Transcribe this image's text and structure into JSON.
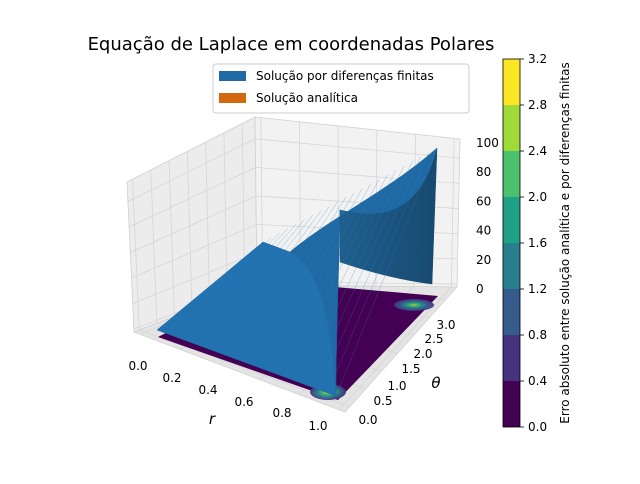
{
  "chart_data": {
    "type": "surface3d",
    "title": "Equação de Laplace em coordenadas Polares",
    "xlabel": "r",
    "ylabel": "θ",
    "zlabel": "",
    "xlim": [
      0.0,
      1.0
    ],
    "ylim": [
      0.0,
      3.1416
    ],
    "zlim": [
      0,
      100
    ],
    "x_ticks": [
      "0.0",
      "0.2",
      "0.4",
      "0.6",
      "0.8",
      "1.0"
    ],
    "y_ticks": [
      "0.0",
      "0.5",
      "1.0",
      "1.5",
      "2.0",
      "2.5",
      "3.0"
    ],
    "z_ticks": [
      "0",
      "20",
      "40",
      "60",
      "80",
      "100"
    ],
    "legend": {
      "placement": "top-center",
      "entries": [
        {
          "label": "Solução por diferenças finitas",
          "color": "#1f6aa5"
        },
        {
          "label": "Solução analítica",
          "color": "#d2690e"
        }
      ]
    },
    "surface_samples": {
      "r": [
        0.0,
        0.5,
        1.0
      ],
      "theta": [
        0.0,
        1.5708,
        3.1416
      ],
      "u": [
        [
          0,
          0,
          0
        ],
        [
          0,
          25,
          50
        ],
        [
          0,
          50,
          100
        ]
      ]
    },
    "error_contour": {
      "levels": [
        0.0,
        0.4,
        0.8,
        1.2,
        1.6,
        2.0,
        2.4,
        2.8,
        3.2
      ],
      "colors": [
        "#440154",
        "#46327e",
        "#365c8d",
        "#277f8e",
        "#1fa187",
        "#4ac16d",
        "#a0da39",
        "#fde725"
      ],
      "hotspots": [
        {
          "r": 1.0,
          "theta": 0.0,
          "max_error": 3.0
        },
        {
          "r": 1.0,
          "theta": 3.1416,
          "max_error": 2.4
        }
      ]
    },
    "colorbar": {
      "label": "Erro absoluto entre solução analítica e por diferenças finitas",
      "ticks": [
        "0.0",
        "0.4",
        "0.8",
        "1.2",
        "1.6",
        "2.0",
        "2.4",
        "2.8",
        "3.2"
      ]
    }
  }
}
